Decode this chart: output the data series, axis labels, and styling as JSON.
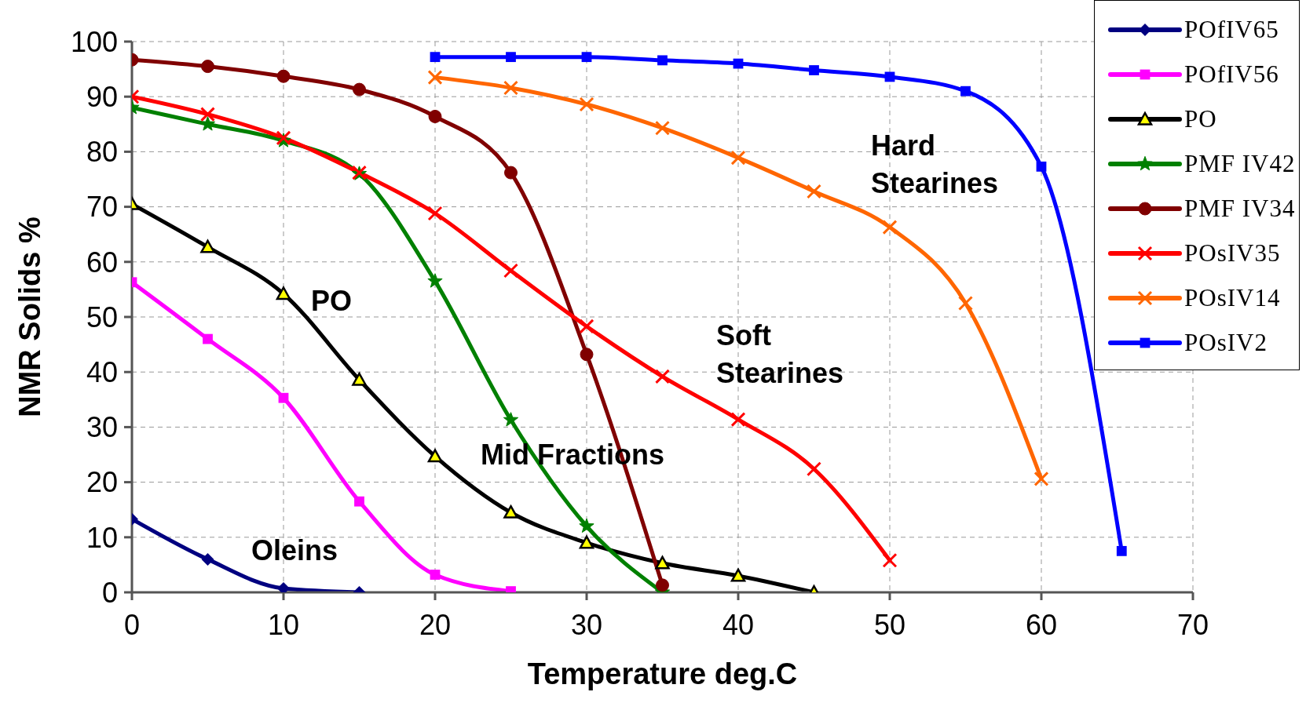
{
  "chart_data": {
    "type": "line",
    "xlabel": "Temperature deg.C",
    "ylabel": "NMR Solids %",
    "xlim": [
      0,
      70
    ],
    "xticks": [
      0,
      10,
      20,
      30,
      40,
      50,
      60,
      70
    ],
    "ylim": [
      0,
      100
    ],
    "yticks": [
      0,
      10,
      20,
      30,
      40,
      50,
      60,
      70,
      80,
      90,
      100
    ],
    "grid": true,
    "legend": "top right",
    "line_style": "solid",
    "annotations": [
      "PO",
      "Oleins",
      "Mid Fractions",
      "Soft Stearines",
      "Hard Stearines"
    ],
    "series": [
      {
        "name": "POfIV65",
        "color": "#000080",
        "marker": "diamond",
        "x": [
          0,
          5,
          10,
          15
        ],
        "values": [
          13.3,
          6,
          0.7,
          0
        ]
      },
      {
        "name": "POfIV56",
        "color": "#ff00ff",
        "marker": "square",
        "x": [
          0,
          5,
          10,
          15,
          20,
          25
        ],
        "values": [
          56.3,
          46,
          35.3,
          16.5,
          3.2,
          0.2
        ]
      },
      {
        "name": "PO",
        "color": "#000000",
        "marker": "triangle",
        "x": [
          0,
          5,
          10,
          15,
          20,
          25,
          30,
          35,
          40,
          45
        ],
        "values": [
          70.5,
          62.7,
          54.2,
          38.6,
          24.7,
          14.5,
          9,
          5.3,
          3,
          0
        ]
      },
      {
        "name": "PMF IV42",
        "color": "#008000",
        "marker": "star",
        "x": [
          0,
          5,
          10,
          15,
          20,
          25,
          30,
          35
        ],
        "values": [
          88,
          85,
          82,
          76,
          56.5,
          31.3,
          12,
          0
        ]
      },
      {
        "name": "PMF IV34",
        "color": "#800000",
        "marker": "circle",
        "x": [
          0,
          5,
          10,
          15,
          20,
          25,
          30,
          35
        ],
        "values": [
          96.7,
          95.5,
          93.7,
          91.3,
          86.4,
          76.2,
          43.2,
          1.3
        ]
      },
      {
        "name": "POsIV35",
        "color": "#ff0000",
        "marker": "cross",
        "x": [
          0,
          5,
          10,
          15,
          20,
          25,
          30,
          35,
          40,
          45,
          50
        ],
        "values": [
          90,
          86.8,
          82.5,
          76.2,
          68.8,
          58.4,
          48.3,
          39.2,
          31.4,
          22.4,
          5.8
        ]
      },
      {
        "name": "POsIV14",
        "color": "#ff6600",
        "marker": "cross",
        "x": [
          20,
          25,
          30,
          35,
          40,
          45,
          50,
          55,
          60
        ],
        "values": [
          93.5,
          91.6,
          88.6,
          84.3,
          78.9,
          72.8,
          66.3,
          52.5,
          20.6
        ]
      },
      {
        "name": "POsIV2",
        "color": "#0000ff",
        "marker": "square",
        "x": [
          20,
          25,
          30,
          35,
          40,
          45,
          50,
          55,
          60,
          65.3
        ],
        "values": [
          97.2,
          97.2,
          97.2,
          96.6,
          96,
          94.8,
          93.6,
          91,
          77.3,
          7.5
        ]
      }
    ]
  }
}
